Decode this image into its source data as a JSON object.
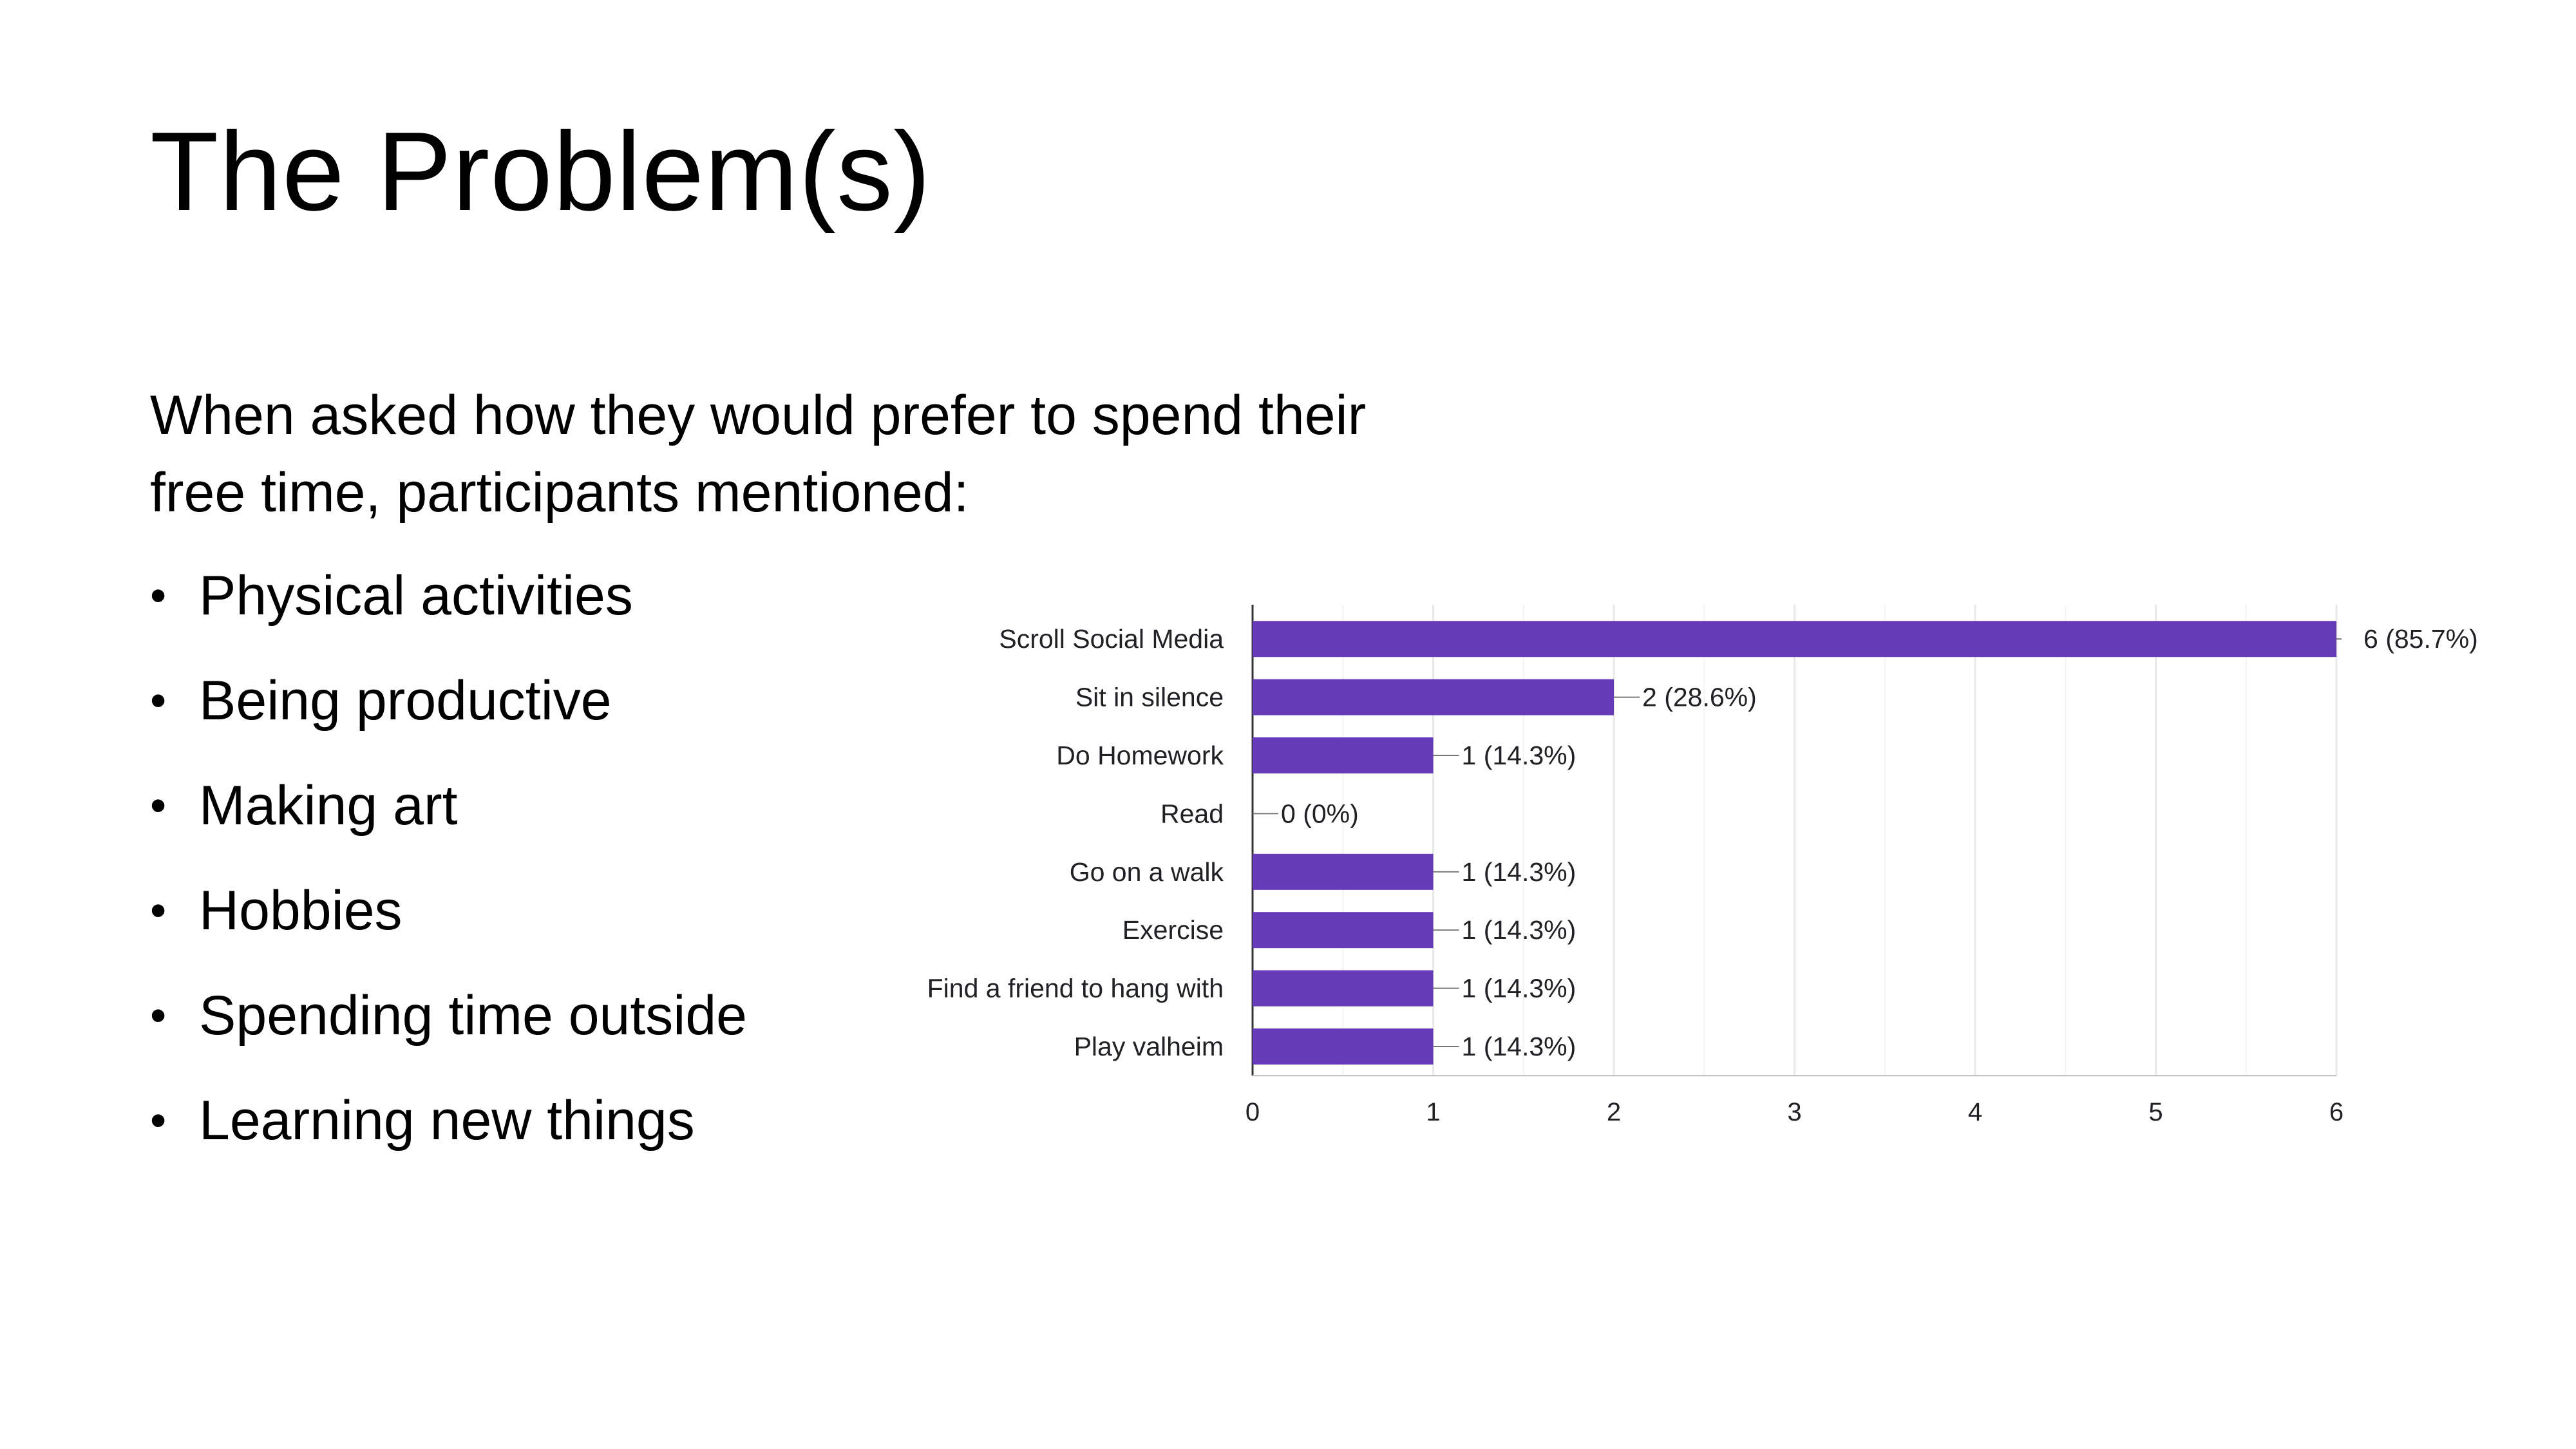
{
  "slide": {
    "title": "The Problem(s)",
    "intro": "When asked how they would prefer to spend their free time, participants mentioned:",
    "bullets": [
      "Physical activities",
      "Being productive",
      "Making art",
      "Hobbies",
      "Spending time outside",
      "Learning new things"
    ]
  },
  "colors": {
    "bar": "#673ab7",
    "grid": "#e8e8e8",
    "axis": "#333333",
    "text": "#202124"
  },
  "chart_data": {
    "type": "bar",
    "orientation": "horizontal",
    "categories": [
      "Scroll Social Media",
      "Sit in silence",
      "Do Homework",
      "Read",
      "Go on a walk",
      "Exercise",
      "Find a friend to hang with",
      "Play valheim"
    ],
    "values": [
      6,
      2,
      1,
      0,
      1,
      1,
      1,
      1
    ],
    "data_labels": [
      "6 (85.7%)",
      "2 (28.6%)",
      "1 (14.3%)",
      "0 (0%)",
      "1 (14.3%)",
      "1 (14.3%)",
      "1 (14.3%)",
      "1 (14.3%)"
    ],
    "xlim": [
      0,
      6
    ],
    "x_ticks": [
      0,
      1,
      2,
      3,
      4,
      5,
      6
    ],
    "grid": true,
    "title": "",
    "xlabel": "",
    "ylabel": ""
  }
}
